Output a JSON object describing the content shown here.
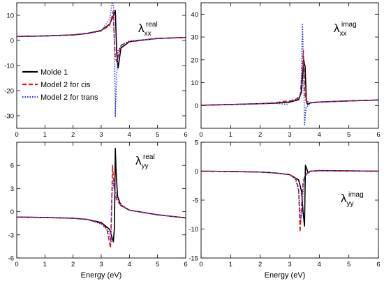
{
  "figure": {
    "xlabel": "Energy (eV)"
  },
  "legend": [
    {
      "series": "Molde 1",
      "color": "#000000",
      "dash": "solid"
    },
    {
      "series": "Model 2 for cis",
      "color": "#e8101a",
      "dash": "dashed"
    },
    {
      "series": "Model 2 for trans",
      "color": "#1f2fd6",
      "dash": "dotted"
    }
  ],
  "chart_data": [
    {
      "type": "line",
      "label_main": "λ",
      "label_sub": "xx",
      "label_sup": "real",
      "xlim": [
        0,
        6
      ],
      "ylim": [
        -35,
        15
      ],
      "xticks": [
        0,
        1,
        2,
        3,
        4,
        5,
        6
      ],
      "yticks": [
        -30,
        -20,
        -10,
        0,
        10
      ],
      "series": [
        {
          "name": "Molde 1",
          "x": [
            0,
            1,
            2,
            2.5,
            3.0,
            3.3,
            3.45,
            3.5,
            3.55,
            3.6,
            3.7,
            4.0,
            5.0,
            6.0
          ],
          "y": [
            1.6,
            1.8,
            2.2,
            2.8,
            4.0,
            6.5,
            10.5,
            12.0,
            -5.0,
            -11.0,
            -3.0,
            -0.5,
            0.8,
            1.2
          ]
        },
        {
          "name": "Model 2 for cis",
          "x": [
            0,
            1,
            2,
            2.5,
            3.0,
            3.3,
            3.38,
            3.42,
            3.46,
            3.5,
            3.55,
            3.7,
            4.0,
            5.0,
            6.0
          ],
          "y": [
            1.6,
            1.8,
            2.2,
            2.7,
            3.8,
            6.0,
            9.5,
            11.5,
            2.0,
            -7.0,
            -8.5,
            -2.0,
            -0.4,
            0.8,
            1.2
          ]
        },
        {
          "name": "Model 2 for trans",
          "x": [
            0,
            1,
            2,
            2.5,
            3.0,
            3.2,
            3.3,
            3.4,
            3.44,
            3.48,
            3.5,
            3.53,
            3.6,
            3.75,
            4.0,
            5.0,
            6.0
          ],
          "y": [
            1.5,
            1.8,
            2.2,
            2.8,
            3.8,
            7.0,
            8.5,
            15.8,
            13.0,
            -10.0,
            -30.5,
            -18.0,
            -4.0,
            -1.5,
            -0.2,
            0.8,
            1.2
          ]
        }
      ]
    },
    {
      "type": "line",
      "label_main": "λ",
      "label_sub": "xx",
      "label_sup": "imag",
      "xlim": [
        0,
        6
      ],
      "ylim": [
        -10,
        45
      ],
      "xticks": [
        0,
        1,
        2,
        3,
        4,
        5,
        6
      ],
      "yticks": [
        0,
        10,
        20,
        30,
        40
      ],
      "series": [
        {
          "name": "Molde 1",
          "x": [
            0,
            1,
            2,
            2.5,
            3.0,
            3.3,
            3.4,
            3.47,
            3.52,
            3.56,
            3.6,
            3.7,
            4.0,
            5.0,
            6.0
          ],
          "y": [
            0.1,
            0.4,
            0.8,
            1.0,
            1.5,
            2.5,
            6.0,
            20.0,
            17.0,
            2.0,
            0.5,
            1.2,
            1.5,
            2.0,
            2.4
          ]
        },
        {
          "name": "Model 2 for cis",
          "x": [
            0,
            1,
            2,
            2.5,
            2.8,
            3.0,
            3.2,
            3.35,
            3.42,
            3.46,
            3.5,
            3.55,
            3.7,
            4.0,
            5.0,
            6.0
          ],
          "y": [
            0.1,
            0.4,
            0.8,
            1.2,
            1.8,
            2.0,
            2.5,
            4.5,
            14.0,
            24.0,
            6.0,
            2.0,
            1.2,
            1.5,
            2.0,
            2.4
          ]
        },
        {
          "name": "Model 2 for trans",
          "x": [
            0,
            1,
            2,
            2.5,
            2.9,
            3.1,
            3.3,
            3.38,
            3.43,
            3.47,
            3.5,
            3.55,
            3.7,
            4.0,
            5.0,
            6.0
          ],
          "y": [
            0.1,
            0.4,
            0.8,
            1.0,
            0.5,
            2.5,
            3.0,
            6.0,
            36.0,
            14.0,
            -8.5,
            -1.0,
            1.0,
            1.5,
            2.0,
            2.4
          ]
        }
      ]
    },
    {
      "type": "line",
      "label_main": "λ",
      "label_sub": "yy",
      "label_sup": "real",
      "xlim": [
        0,
        6
      ],
      "ylim": [
        -6,
        9
      ],
      "xticks": [
        0,
        1,
        2,
        3,
        4,
        5,
        6
      ],
      "yticks": [
        -6,
        -3,
        0,
        3,
        6
      ],
      "series": [
        {
          "name": "Molde 1",
          "x": [
            0,
            1,
            2,
            2.5,
            3.0,
            3.3,
            3.43,
            3.47,
            3.5,
            3.53,
            3.58,
            3.7,
            4.0,
            5.0,
            6.0
          ],
          "y": [
            -0.7,
            -0.75,
            -0.85,
            -1.0,
            -1.4,
            -2.3,
            -3.9,
            -2.0,
            8.2,
            5.0,
            2.0,
            0.8,
            0.2,
            -0.4,
            -0.8
          ]
        },
        {
          "name": "Model 2 for cis",
          "x": [
            0,
            1,
            2,
            2.5,
            3.0,
            3.2,
            3.33,
            3.37,
            3.4,
            3.44,
            3.48,
            3.55,
            3.7,
            4.0,
            5.0,
            6.0
          ],
          "y": [
            -0.7,
            -0.75,
            -0.85,
            -1.0,
            -1.5,
            -2.2,
            -4.7,
            1.0,
            6.0,
            4.0,
            2.5,
            1.5,
            0.8,
            0.2,
            -0.4,
            -0.8
          ]
        },
        {
          "name": "Model 2 for trans",
          "x": [
            0,
            1,
            2,
            2.5,
            3.0,
            3.25,
            3.35,
            3.38,
            3.42,
            3.46,
            3.5,
            3.6,
            3.75,
            4.0,
            5.0,
            6.0
          ],
          "y": [
            -0.7,
            -0.75,
            -0.85,
            -1.0,
            -1.6,
            -2.5,
            -4.0,
            2.0,
            4.0,
            3.0,
            2.6,
            1.5,
            0.8,
            0.2,
            -0.4,
            -0.8
          ]
        }
      ]
    },
    {
      "type": "line",
      "label_main": "λ",
      "label_sub": "yy",
      "label_sup": "imag",
      "xlim": [
        0,
        6
      ],
      "ylim": [
        -15,
        5
      ],
      "xticks": [
        0,
        1,
        2,
        3,
        4,
        5,
        6
      ],
      "yticks": [
        -15,
        -10,
        -5,
        0,
        5
      ],
      "series": [
        {
          "name": "Molde 1",
          "x": [
            0,
            1,
            2,
            2.5,
            3.0,
            3.3,
            3.4,
            3.45,
            3.5,
            3.53,
            3.57,
            3.62,
            3.7,
            4.0,
            5.0,
            6.0
          ],
          "y": [
            0,
            -0.05,
            -0.15,
            -0.3,
            -0.6,
            -1.5,
            -3.5,
            -7.0,
            -9.5,
            1.0,
            0.5,
            -0.3,
            0.0,
            0.1,
            0.05,
            0.0
          ]
        },
        {
          "name": "Model 2 for cis",
          "x": [
            0,
            1,
            2,
            2.5,
            3.0,
            3.2,
            3.3,
            3.35,
            3.4,
            3.45,
            3.5,
            3.6,
            3.7,
            4.0,
            5.0,
            6.0
          ],
          "y": [
            0,
            -0.05,
            -0.15,
            -0.3,
            -0.6,
            -1.2,
            -3.0,
            -10.5,
            -6.0,
            -2.0,
            -1.0,
            -0.3,
            0.0,
            0.1,
            0.05,
            0.0
          ]
        },
        {
          "name": "Model 2 for trans",
          "x": [
            0,
            1,
            2,
            2.5,
            3.0,
            3.2,
            3.3,
            3.37,
            3.42,
            3.46,
            3.5,
            3.6,
            3.7,
            4.0,
            5.0,
            6.0
          ],
          "y": [
            0,
            -0.05,
            -0.15,
            -0.3,
            -0.6,
            -1.5,
            -3.5,
            -8.5,
            -7.0,
            -2.5,
            -1.0,
            -0.3,
            0.0,
            0.1,
            0.05,
            0.0
          ]
        }
      ]
    }
  ]
}
